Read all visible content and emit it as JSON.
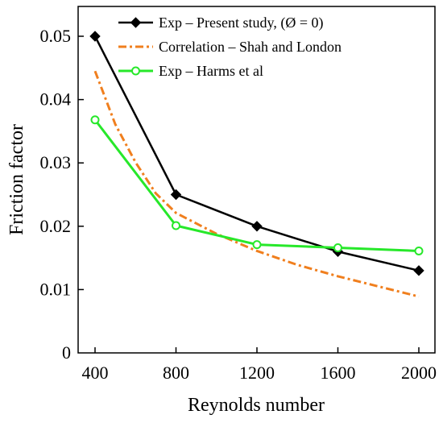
{
  "chart_data": {
    "type": "line",
    "xlabel": "Reynolds number",
    "ylabel": "Friction factor",
    "xlim": [
      400,
      2000
    ],
    "ylim": [
      0,
      0.05
    ],
    "xticks": [
      400,
      800,
      1200,
      1600,
      2000
    ],
    "xtick_labels": [
      "400",
      "800",
      "1200",
      "1600",
      "2000"
    ],
    "yticks": [
      0,
      0.01,
      0.02,
      0.03,
      0.04,
      0.05
    ],
    "ytick_labels": [
      "0",
      "0.01",
      "0.02",
      "0.03",
      "0.04",
      "0.05"
    ],
    "grid": false,
    "legend_position": "top-right",
    "series": [
      {
        "name": "Exp – Present study, (Ø = 0)",
        "color": "#000000",
        "line_style": "solid",
        "marker": "diamond",
        "x": [
          400,
          800,
          1200,
          1600,
          2000
        ],
        "y": [
          0.05,
          0.025,
          0.02,
          0.016,
          0.013
        ]
      },
      {
        "name": "Correlation – Shah and London",
        "color": "#f07f1e",
        "line_style": "dashdot",
        "marker": "none",
        "x": [
          400,
          500,
          600,
          700,
          800,
          1000,
          1200,
          1400,
          1600,
          1800,
          2000
        ],
        "y": [
          0.0445,
          0.0361,
          0.0301,
          0.0252,
          0.0221,
          0.0188,
          0.0161,
          0.0139,
          0.0121,
          0.0105,
          0.0089
        ]
      },
      {
        "name": "Exp – Harms et al",
        "color": "#27e82a",
        "line_style": "solid",
        "marker": "open-circle",
        "x": [
          400,
          800,
          1200,
          1600,
          2000
        ],
        "y": [
          0.0368,
          0.0201,
          0.0171,
          0.0166,
          0.0161
        ]
      }
    ]
  }
}
